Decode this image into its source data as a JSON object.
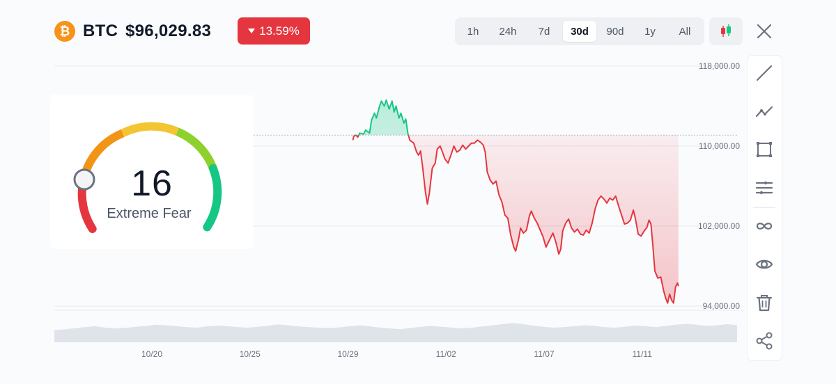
{
  "header": {
    "coin_icon": "bitcoin-icon",
    "symbol": "BTC",
    "price": "$96,029.83",
    "change": "13.59%",
    "change_direction": "down",
    "change_color": "#e5363f"
  },
  "ranges": {
    "tabs": [
      "1h",
      "24h",
      "7d",
      "30d",
      "90d",
      "1y",
      "All"
    ],
    "selected": "30d"
  },
  "toolbar": {
    "close_icon": "close-icon",
    "candlestick_icon": "candlestick-icon",
    "tools": [
      "trend-line-icon",
      "polyline-icon",
      "rectangle-icon",
      "horizontal-lines-icon",
      "infinity-icon",
      "eye-icon",
      "trash-icon",
      "share-icon"
    ]
  },
  "sentiment": {
    "value": "16",
    "label": "Extreme Fear",
    "score": 16
  },
  "chart_data": {
    "type": "area",
    "title": "",
    "xlabel": "",
    "ylabel": "",
    "x_ticks": [
      "10/20",
      "10/25",
      "10/29",
      "11/02",
      "11/07",
      "11/11"
    ],
    "y_ticks": [
      "118,000.00",
      "110,000.00",
      "102,000.00",
      "94,000.00"
    ],
    "ylim": [
      94000,
      118000
    ],
    "baseline": 111100,
    "colors": {
      "up": "#16c784",
      "down": "#e5363f"
    },
    "series": [
      {
        "values": [
          [
            10.25,
            110600
          ],
          [
            10.3,
            111000
          ],
          [
            10.4,
            111100
          ],
          [
            10.5,
            110900
          ],
          [
            10.6,
            111300
          ],
          [
            10.8,
            111200
          ],
          [
            10.9,
            111600
          ],
          [
            11.1,
            111300
          ],
          [
            11.2,
            112600
          ],
          [
            11.35,
            113300
          ],
          [
            11.45,
            112800
          ],
          [
            11.6,
            113900
          ],
          [
            11.7,
            114500
          ],
          [
            11.85,
            114000
          ],
          [
            11.95,
            114600
          ],
          [
            12.1,
            113700
          ],
          [
            12.25,
            114500
          ],
          [
            12.35,
            113400
          ],
          [
            12.45,
            114000
          ],
          [
            12.6,
            112800
          ],
          [
            12.7,
            113300
          ],
          [
            12.85,
            112300
          ],
          [
            12.95,
            112700
          ],
          [
            13.05,
            111300
          ],
          [
            13.15,
            110600
          ],
          [
            13.35,
            110300
          ],
          [
            13.5,
            109400
          ],
          [
            13.6,
            109100
          ],
          [
            13.7,
            109500
          ],
          [
            13.8,
            108000
          ],
          [
            13.95,
            105400
          ],
          [
            14.05,
            104200
          ],
          [
            14.15,
            105300
          ],
          [
            14.3,
            107800
          ],
          [
            14.45,
            108300
          ],
          [
            14.55,
            109700
          ],
          [
            14.7,
            110000
          ],
          [
            14.8,
            109500
          ],
          [
            14.95,
            108700
          ],
          [
            15.1,
            108300
          ],
          [
            15.25,
            109100
          ],
          [
            15.4,
            110000
          ],
          [
            15.55,
            109400
          ],
          [
            15.7,
            109600
          ],
          [
            15.85,
            110100
          ],
          [
            16.0,
            109700
          ],
          [
            16.15,
            110000
          ],
          [
            16.3,
            110300
          ],
          [
            16.45,
            110300
          ],
          [
            16.6,
            110600
          ],
          [
            16.75,
            110400
          ],
          [
            16.9,
            110100
          ],
          [
            17.0,
            109400
          ],
          [
            17.1,
            107400
          ],
          [
            17.25,
            106600
          ],
          [
            17.4,
            106200
          ],
          [
            17.55,
            106500
          ],
          [
            17.7,
            105100
          ],
          [
            17.85,
            104400
          ],
          [
            18.0,
            103100
          ],
          [
            18.15,
            102800
          ],
          [
            18.3,
            101100
          ],
          [
            18.45,
            99900
          ],
          [
            18.55,
            99500
          ],
          [
            18.7,
            100700
          ],
          [
            18.8,
            101800
          ],
          [
            18.95,
            101300
          ],
          [
            19.1,
            101600
          ],
          [
            19.25,
            103000
          ],
          [
            19.35,
            103500
          ],
          [
            19.5,
            102800
          ],
          [
            19.65,
            102300
          ],
          [
            19.8,
            101600
          ],
          [
            19.95,
            100900
          ],
          [
            20.1,
            99900
          ],
          [
            20.3,
            100700
          ],
          [
            20.45,
            101300
          ],
          [
            20.6,
            100400
          ],
          [
            20.75,
            99200
          ],
          [
            20.85,
            99700
          ],
          [
            20.95,
            101500
          ],
          [
            21.1,
            102300
          ],
          [
            21.25,
            102700
          ],
          [
            21.4,
            101800
          ],
          [
            21.55,
            101400
          ],
          [
            21.7,
            101700
          ],
          [
            21.85,
            101200
          ],
          [
            22.0,
            101100
          ],
          [
            22.15,
            101600
          ],
          [
            22.3,
            101300
          ],
          [
            22.45,
            102300
          ],
          [
            22.6,
            103700
          ],
          [
            22.75,
            104600
          ],
          [
            22.9,
            105000
          ],
          [
            23.05,
            104700
          ],
          [
            23.2,
            104300
          ],
          [
            23.35,
            104800
          ],
          [
            23.5,
            104600
          ],
          [
            23.65,
            105000
          ],
          [
            23.8,
            104000
          ],
          [
            23.95,
            103100
          ],
          [
            24.1,
            102200
          ],
          [
            24.25,
            102300
          ],
          [
            24.4,
            102600
          ],
          [
            24.55,
            103600
          ],
          [
            24.65,
            102800
          ],
          [
            24.8,
            101200
          ],
          [
            24.95,
            101000
          ],
          [
            25.1,
            101500
          ],
          [
            25.25,
            101900
          ],
          [
            25.35,
            102600
          ],
          [
            25.45,
            102200
          ],
          [
            25.55,
            100000
          ],
          [
            25.65,
            97500
          ],
          [
            25.8,
            96800
          ],
          [
            25.95,
            96900
          ],
          [
            26.1,
            95500
          ],
          [
            26.2,
            94800
          ],
          [
            26.3,
            94300
          ],
          [
            26.4,
            95200
          ],
          [
            26.5,
            94600
          ],
          [
            26.6,
            94300
          ],
          [
            26.7,
            95900
          ],
          [
            26.8,
            96300
          ],
          [
            26.85,
            96000
          ]
        ]
      }
    ],
    "volume": [
      42,
      44,
      48,
      52,
      55,
      50,
      47,
      49,
      53,
      56,
      60,
      58,
      55,
      52,
      50,
      54,
      57,
      55,
      52,
      50,
      53,
      57,
      61,
      58,
      54,
      52,
      50,
      48,
      51,
      55,
      58,
      54,
      50,
      47,
      45,
      49,
      53,
      56,
      53,
      50,
      47,
      50,
      54,
      58,
      62,
      66,
      62,
      57,
      53,
      50,
      52,
      55,
      58,
      56,
      52,
      50,
      53,
      57,
      55,
      52,
      56,
      60,
      63,
      60,
      56,
      58,
      62,
      59
    ]
  }
}
